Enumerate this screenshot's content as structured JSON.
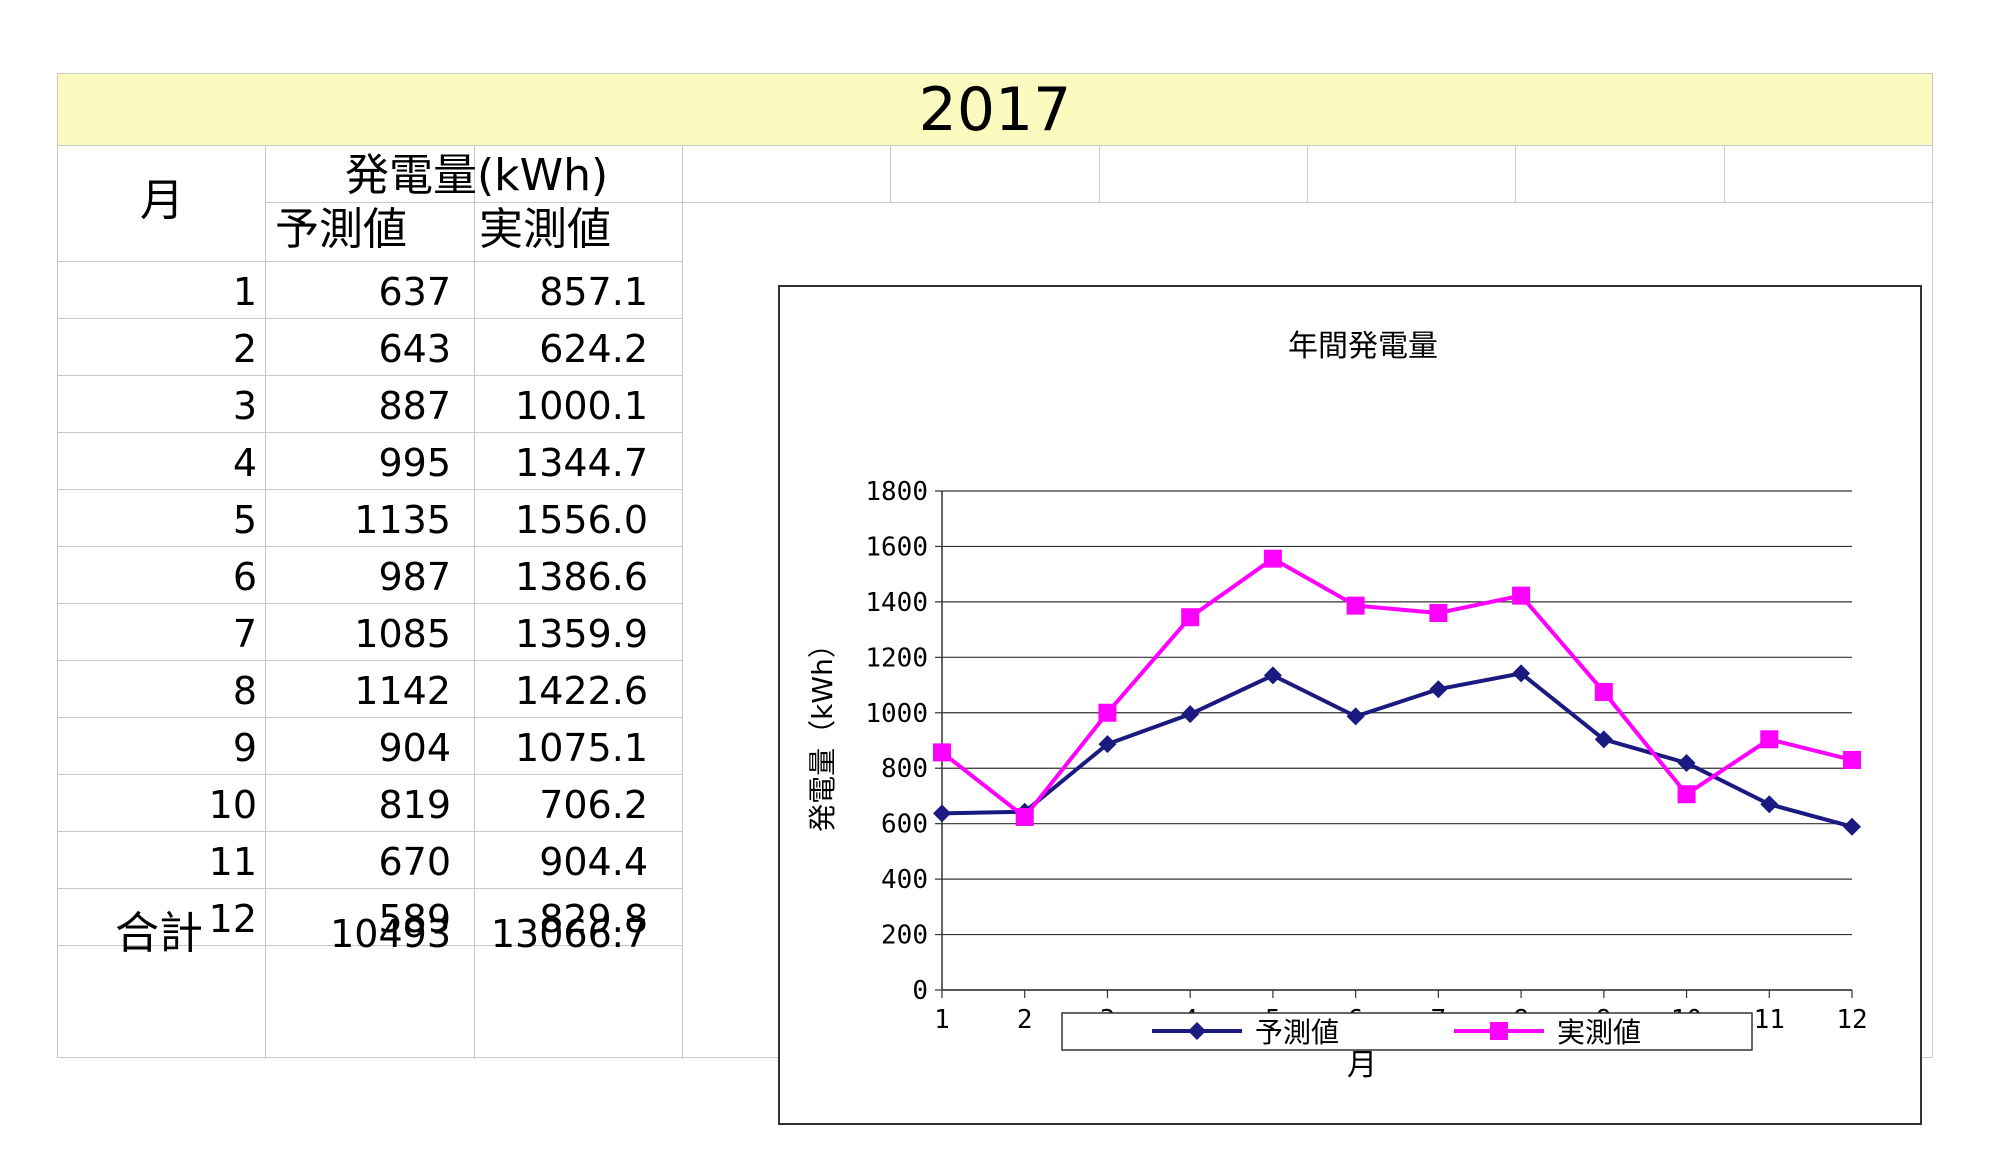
{
  "title": "2017",
  "table": {
    "month_header": "月",
    "group_header": "発電量(kWh)",
    "forecast_header": "予測値",
    "actual_header": "実測値",
    "rows": [
      {
        "month": "1",
        "forecast": "637",
        "actual": "857.1"
      },
      {
        "month": "2",
        "forecast": "643",
        "actual": "624.2"
      },
      {
        "month": "3",
        "forecast": "887",
        "actual": "1000.1"
      },
      {
        "month": "4",
        "forecast": "995",
        "actual": "1344.7"
      },
      {
        "month": "5",
        "forecast": "1135",
        "actual": "1556.0"
      },
      {
        "month": "6",
        "forecast": "987",
        "actual": "1386.6"
      },
      {
        "month": "7",
        "forecast": "1085",
        "actual": "1359.9"
      },
      {
        "month": "8",
        "forecast": "1142",
        "actual": "1422.6"
      },
      {
        "month": "9",
        "forecast": "904",
        "actual": "1075.1"
      },
      {
        "month": "10",
        "forecast": "819",
        "actual": "706.2"
      },
      {
        "month": "11",
        "forecast": "670",
        "actual": "904.4"
      },
      {
        "month": "12",
        "forecast": "589",
        "actual": "829.8"
      }
    ],
    "total_label": "合計",
    "total_forecast": "10493",
    "total_actual": "13066.7"
  },
  "chart_data": {
    "type": "line",
    "title": "年間発電量",
    "xlabel": "月",
    "ylabel": "発電量（kWh）",
    "categories": [
      "1",
      "2",
      "3",
      "4",
      "5",
      "6",
      "7",
      "8",
      "9",
      "10",
      "11",
      "12"
    ],
    "ylim": [
      0,
      1800
    ],
    "yticks": [
      0,
      200,
      400,
      600,
      800,
      1000,
      1200,
      1400,
      1600,
      1800
    ],
    "grid": true,
    "legend_position": "bottom",
    "series": [
      {
        "name": "予測値",
        "color": "#1a1a80",
        "marker": "diamond",
        "values": [
          637,
          643,
          887,
          995,
          1135,
          987,
          1085,
          1142,
          904,
          819,
          670,
          589
        ]
      },
      {
        "name": "実測値",
        "color": "#ff00ff",
        "marker": "square",
        "values": [
          857.1,
          624.2,
          1000.1,
          1344.7,
          1556.0,
          1386.6,
          1359.9,
          1422.6,
          1075.1,
          706.2,
          904.4,
          829.8
        ]
      }
    ]
  }
}
